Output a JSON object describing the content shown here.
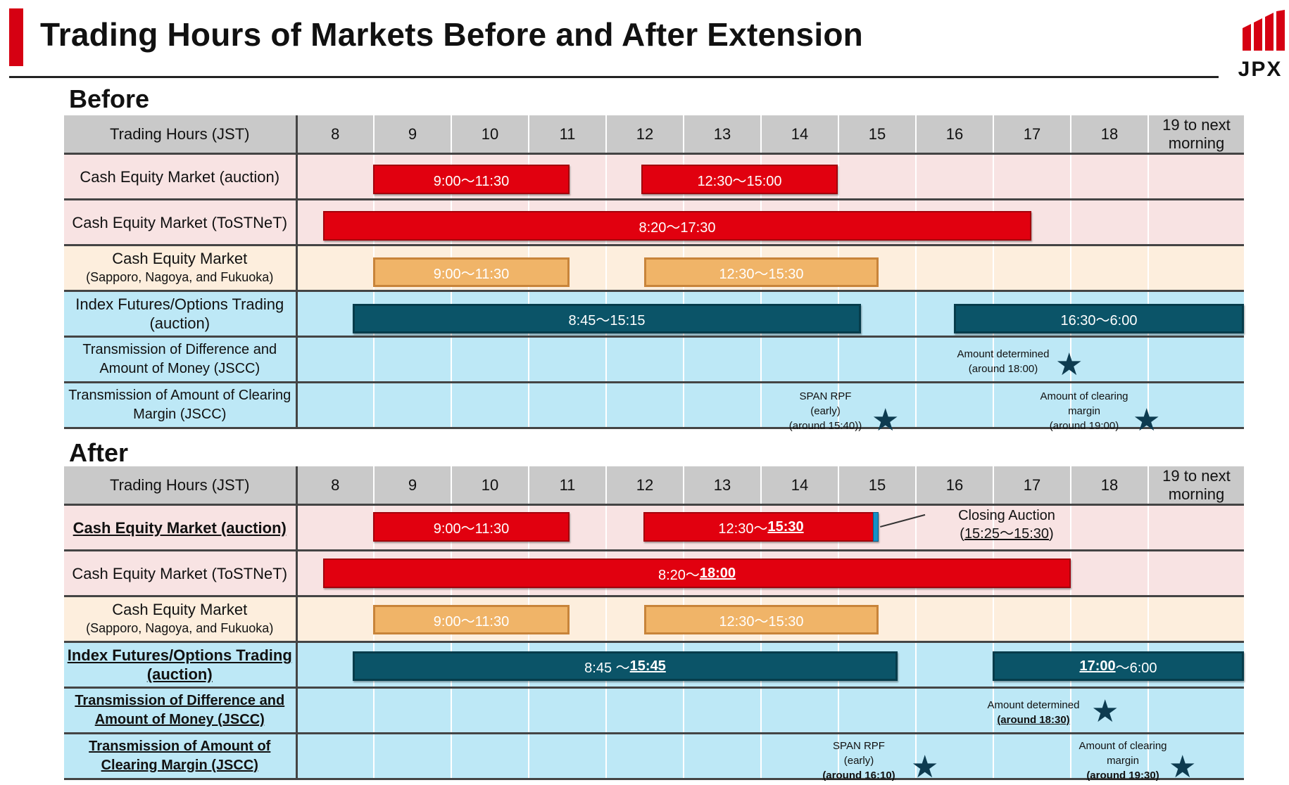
{
  "title": "Trading Hours of Markets Before and After Extension",
  "logo": "JPX",
  "colors": {
    "accent": "#d60012",
    "red_bar": "#e1000f",
    "orange_bar": "#f0b468",
    "teal_bar": "#0b5468",
    "star": "#0d3b50"
  },
  "header": {
    "label": "Trading Hours (JST)",
    "hours": [
      "8",
      "9",
      "10",
      "11",
      "12",
      "13",
      "14",
      "15",
      "16",
      "17",
      "18"
    ],
    "last": "19 to next morning"
  },
  "before": {
    "heading": "Before",
    "rows": [
      {
        "label": "Cash Equity Market (auction)",
        "bars": [
          "9:00～11:30",
          "12:30～15:00"
        ]
      },
      {
        "label": "Cash Equity Market (ToSTNeT)",
        "bars": [
          "8:20～17:30"
        ]
      },
      {
        "label": "Cash Equity Market",
        "sublabel": "(Sapporo, Nagoya, and Fukuoka)",
        "bars": [
          "9:00～11:30",
          "12:30～15:30"
        ]
      },
      {
        "label": "Index Futures/Options Trading (auction)",
        "bars": [
          "8:45～15:15",
          "16:30～6:00"
        ]
      },
      {
        "label": "Transmission of Difference and Amount of Money (JSCC)",
        "notes": {
          "n1_line1": "Amount determined",
          "n1_line2": "(around 18:00)"
        }
      },
      {
        "label": "Transmission of Amount of Clearing Margin (JSCC)",
        "notes": {
          "n1_line1": "SPAN RPF",
          "n1_line2": "(early)",
          "n1_line3": "(around 15:40))",
          "n2_line1": "Amount of clearing",
          "n2_line2": "margin",
          "n2_line3": "(around 19:00)"
        }
      }
    ]
  },
  "after": {
    "heading": "After",
    "rows": [
      {
        "label": "Cash Equity Market (auction)",
        "bar1": "9:00～11:30",
        "bar2_pre": "12:30～",
        "bar2_em": "15:30",
        "callout_line1": "Closing Auction",
        "callout_open": "(",
        "callout_time": "15:25～15:30",
        "callout_close": ")"
      },
      {
        "label": "Cash Equity Market (ToSTNeT)",
        "bar_pre": "8:20～",
        "bar_em": "18:00"
      },
      {
        "label": "Cash Equity Market",
        "sublabel": "(Sapporo, Nagoya, and Fukuoka)",
        "bars": [
          "9:00～11:30",
          "12:30～15:30"
        ]
      },
      {
        "label": "Index Futures/Options Trading (auction)",
        "bar1_pre": "8:45 ～",
        "bar1_em": "15:45",
        "bar2_em": "17:00",
        "bar2_post": "～6:00"
      },
      {
        "label": "Transmission of Difference and Amount of Money (JSCC)",
        "notes": {
          "n1_line1": "Amount determined",
          "n1_line2": "(around 18:30)"
        }
      },
      {
        "label": "Transmission of Amount of Clearing Margin (JSCC)",
        "notes": {
          "n1_line1": "SPAN RPF",
          "n1_line2": "(early)",
          "n1_line3": "(around 16:10)",
          "n2_line1": "Amount of clearing",
          "n2_line2": "margin",
          "n2_line3": "(around 19:30)"
        }
      }
    ]
  },
  "star_glyph": "★"
}
